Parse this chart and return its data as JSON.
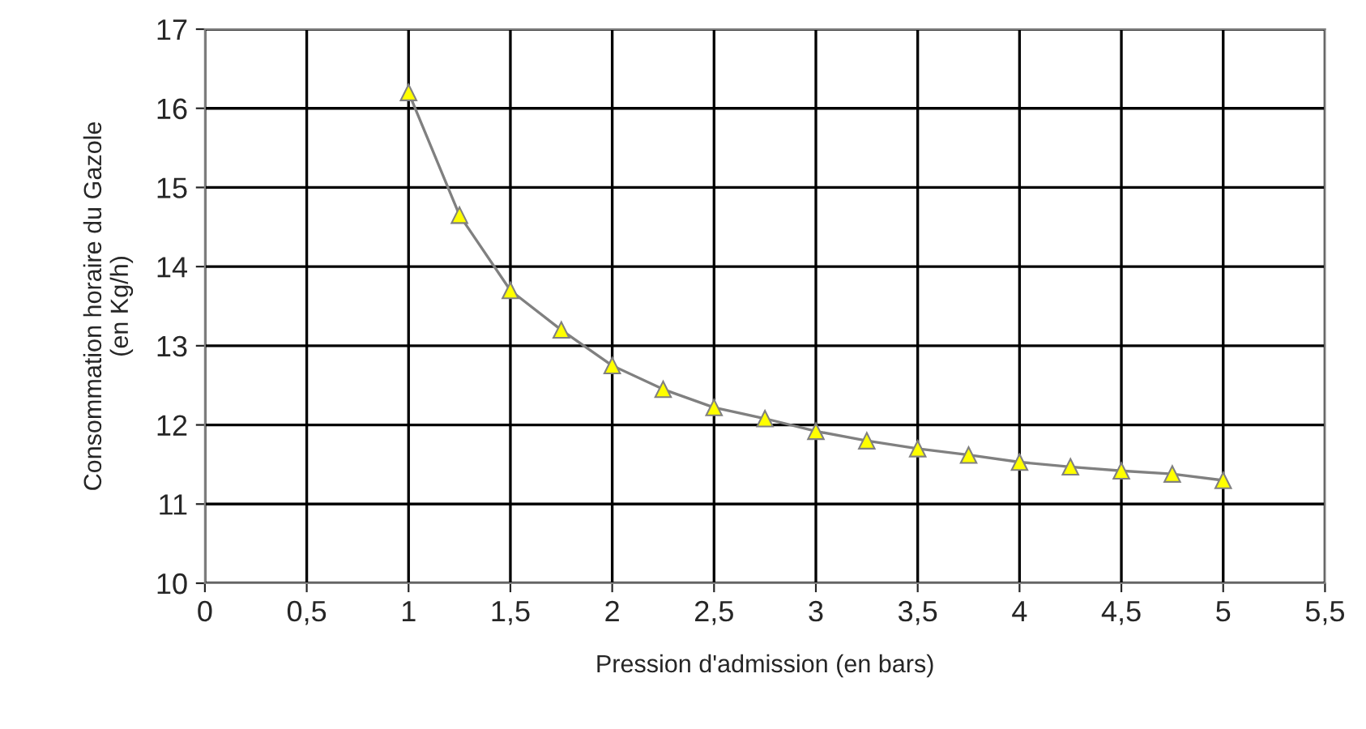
{
  "chart_data": {
    "type": "line",
    "xlabel": "Pression d'admission (en bars)",
    "ylabel": "Consommation horaire du Gazole\n(en Kg/h)",
    "x": [
      1,
      1.25,
      1.5,
      1.75,
      2,
      2.25,
      2.5,
      2.75,
      3,
      3.25,
      3.5,
      3.75,
      4,
      4.25,
      4.5,
      4.75,
      5
    ],
    "series": [
      {
        "color": "#ffff00",
        "values": [
          16.2,
          14.65,
          13.7,
          13.2,
          12.75,
          12.45,
          12.22,
          12.08,
          11.92,
          11.8,
          11.7,
          11.62,
          11.53,
          11.47,
          11.42,
          11.38,
          11.3
        ]
      }
    ],
    "marker": "triangle",
    "line_style": "solid",
    "grid": true,
    "legend": false,
    "xlim": [
      0,
      5.5
    ],
    "ylim": [
      10,
      17
    ],
    "xticks": [
      0,
      {
        "value": 0.5,
        "label": "0,5"
      },
      1,
      {
        "value": 1.5,
        "label": "1,5"
      },
      2,
      {
        "value": 2.5,
        "label": "2,5"
      },
      3,
      {
        "value": 3.5,
        "label": "3,5"
      },
      4,
      {
        "value": 4.5,
        "label": "4,5"
      },
      5,
      {
        "value": 5.5,
        "label": "5,5"
      }
    ],
    "yticks": [
      10,
      11,
      12,
      13,
      14,
      15,
      16,
      17
    ]
  }
}
